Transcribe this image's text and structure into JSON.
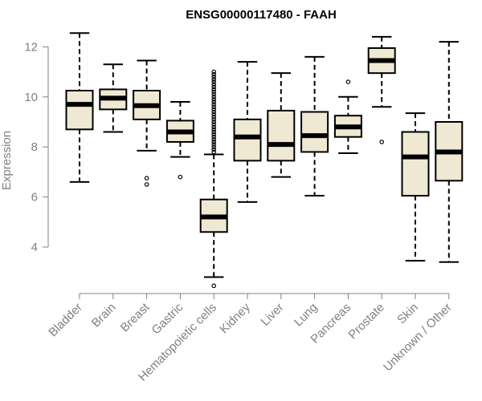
{
  "chart_data": {
    "type": "boxplot",
    "title": "ENSG00000117480 - FAAH",
    "xlabel": "",
    "ylabel": "Expression",
    "ylim": [
      2.4,
      12.8
    ],
    "yticks": [
      4,
      6,
      8,
      10,
      12
    ],
    "colors": {
      "box_fill": "#efe8d2",
      "stroke": "#000000",
      "axis": "#808080"
    },
    "categories": [
      "Bladder",
      "Brain",
      "Breast",
      "Gastric",
      "Hematopoietic cells",
      "Kidney",
      "Liver",
      "Lung",
      "Pancreas",
      "Prostate",
      "Skin",
      "Unknown / Other"
    ],
    "boxes": [
      {
        "name": "Bladder",
        "whisker_low": 6.6,
        "q1": 8.7,
        "median": 9.7,
        "q3": 10.25,
        "whisker_high": 12.55,
        "outliers": []
      },
      {
        "name": "Brain",
        "whisker_low": 8.6,
        "q1": 9.5,
        "median": 9.95,
        "q3": 10.3,
        "whisker_high": 11.3,
        "outliers": []
      },
      {
        "name": "Breast",
        "whisker_low": 7.85,
        "q1": 9.1,
        "median": 9.65,
        "q3": 10.25,
        "whisker_high": 11.45,
        "outliers": [
          6.5,
          6.75
        ]
      },
      {
        "name": "Gastric",
        "whisker_low": 7.6,
        "q1": 8.2,
        "median": 8.6,
        "q3": 9.05,
        "whisker_high": 9.8,
        "outliers": [
          6.8
        ]
      },
      {
        "name": "Hematopoietic cells",
        "whisker_low": 2.8,
        "q1": 4.6,
        "median": 5.2,
        "q3": 5.9,
        "whisker_high": 7.7,
        "outliers": [
          2.45,
          7.8,
          7.9,
          8.0,
          8.1,
          8.2,
          8.3,
          8.4,
          8.5,
          8.6,
          8.7,
          8.8,
          8.9,
          9.0,
          9.1,
          9.2,
          9.3,
          9.4,
          9.5,
          9.6,
          9.7,
          9.8,
          9.9,
          10.0,
          10.1,
          10.2,
          10.3,
          10.4,
          10.5,
          10.6,
          10.7,
          10.8,
          10.9,
          11.0
        ]
      },
      {
        "name": "Kidney",
        "whisker_low": 5.8,
        "q1": 7.45,
        "median": 8.4,
        "q3": 9.1,
        "whisker_high": 11.4,
        "outliers": []
      },
      {
        "name": "Liver",
        "whisker_low": 6.8,
        "q1": 7.45,
        "median": 8.1,
        "q3": 9.45,
        "whisker_high": 10.95,
        "outliers": []
      },
      {
        "name": "Lung",
        "whisker_low": 6.05,
        "q1": 7.8,
        "median": 8.45,
        "q3": 9.4,
        "whisker_high": 11.6,
        "outliers": []
      },
      {
        "name": "Pancreas",
        "whisker_low": 7.75,
        "q1": 8.4,
        "median": 8.8,
        "q3": 9.25,
        "whisker_high": 10.0,
        "outliers": [
          10.6
        ]
      },
      {
        "name": "Prostate",
        "whisker_low": 9.6,
        "q1": 10.95,
        "median": 11.45,
        "q3": 11.95,
        "whisker_high": 12.4,
        "outliers": [
          8.2
        ]
      },
      {
        "name": "Skin",
        "whisker_low": 3.45,
        "q1": 6.05,
        "median": 7.6,
        "q3": 8.6,
        "whisker_high": 9.35,
        "outliers": []
      },
      {
        "name": "Unknown / Other",
        "whisker_low": 3.4,
        "q1": 6.65,
        "median": 7.8,
        "q3": 9.0,
        "whisker_high": 12.2,
        "outliers": []
      }
    ]
  }
}
